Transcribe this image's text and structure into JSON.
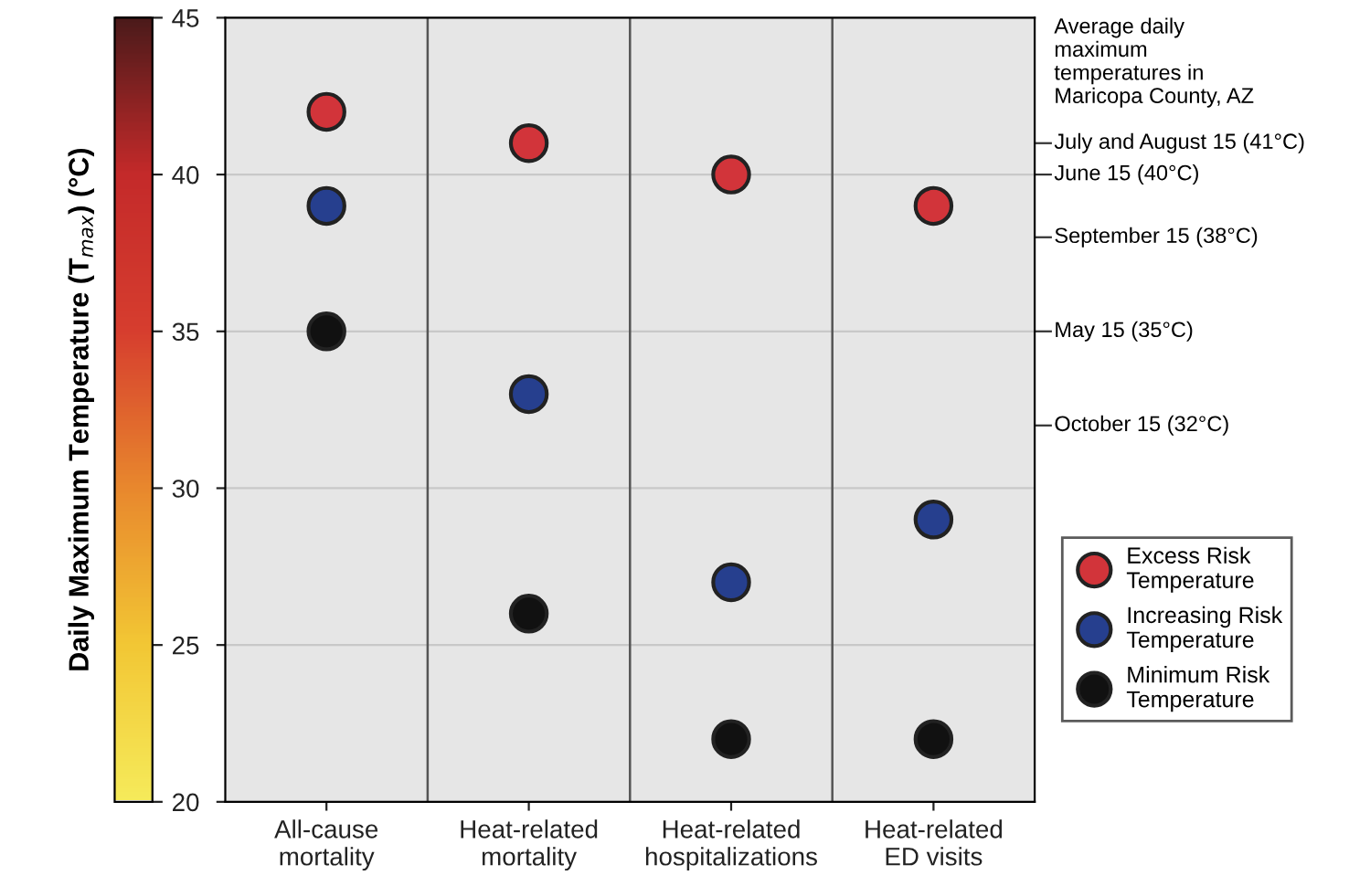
{
  "chart_data": {
    "type": "scatter",
    "ylabel": "Daily Maximum Temperature (T$_{max}$) (°C)",
    "categories": [
      "All-cause\nmortality",
      "Heat-related\nmortality",
      "Heat-related\nhospitalizations",
      "Heat-related\nED visits"
    ],
    "series": [
      {
        "name": "Excess Risk\nTemperature",
        "color": "#d2343a",
        "values": [
          42,
          41,
          40,
          39
        ]
      },
      {
        "name": "Increasing Risk\nTemperature",
        "color": "#263f8e",
        "values": [
          39,
          33,
          27,
          29
        ]
      },
      {
        "name": "Minimum Risk\nTemperature",
        "color": "#111111",
        "values": [
          35,
          26,
          22,
          22
        ]
      }
    ],
    "ylim": [
      20,
      45
    ],
    "yticks": [
      20,
      25,
      30,
      35,
      40,
      45
    ],
    "clim": [
      20,
      45
    ],
    "cticks": [
      20,
      25,
      30,
      35,
      40,
      45
    ],
    "tick_labels": "x",
    "grid": "y",
    "legend": "right",
    "marker": "circle",
    "ref_lines": [
      {
        "axis": "y",
        "value": 41,
        "label": "July and August 15 (41°C)"
      },
      {
        "axis": "y",
        "value": 40,
        "label": "June 15 (40°C)"
      },
      {
        "axis": "y",
        "value": 38,
        "label": "September 15 (38°C)"
      },
      {
        "axis": "y",
        "value": 35,
        "label": "May 15 (35°C)"
      },
      {
        "axis": "y",
        "value": 32,
        "label": "October 15 (32°C)"
      }
    ],
    "annotations": [
      "Average daily\nmaximum\ntemperatures in\nMaricopa County, AZ"
    ]
  }
}
